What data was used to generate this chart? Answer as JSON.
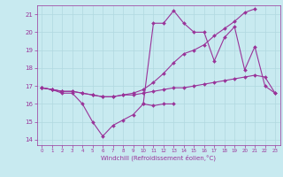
{
  "xlabel": "Windchill (Refroidissement éolien,°C)",
  "xlim": [
    -0.5,
    23.5
  ],
  "ylim": [
    13.7,
    21.5
  ],
  "xticks": [
    0,
    1,
    2,
    3,
    4,
    5,
    6,
    7,
    8,
    9,
    10,
    11,
    12,
    13,
    14,
    15,
    16,
    17,
    18,
    19,
    20,
    21,
    22,
    23
  ],
  "yticks": [
    14,
    15,
    16,
    17,
    18,
    19,
    20,
    21
  ],
  "bg_color": "#c8eaf0",
  "grid_color": "#b0d8e0",
  "line_color": "#993399",
  "line_width": 0.8,
  "marker_size": 2.0,
  "series": [
    [
      16.9,
      16.8,
      16.6,
      16.6,
      16.0,
      15.0,
      14.2,
      14.8,
      15.1,
      15.4,
      16.0,
      15.9,
      16.0,
      16.0,
      null,
      null,
      null,
      null,
      null,
      null,
      null,
      null,
      null,
      null
    ],
    [
      16.9,
      16.8,
      16.7,
      16.7,
      16.6,
      16.5,
      16.4,
      16.4,
      16.5,
      16.5,
      16.6,
      16.7,
      16.8,
      16.9,
      16.9,
      17.0,
      17.1,
      17.2,
      17.3,
      17.4,
      17.5,
      17.6,
      17.5,
      16.6
    ],
    [
      16.9,
      16.8,
      16.7,
      16.7,
      16.6,
      16.5,
      16.4,
      16.4,
      16.5,
      16.6,
      16.8,
      17.2,
      17.7,
      18.3,
      18.8,
      19.0,
      19.3,
      19.8,
      20.2,
      20.6,
      21.1,
      21.3,
      null,
      null
    ],
    [
      16.9,
      16.8,
      16.7,
      null,
      null,
      null,
      null,
      null,
      null,
      null,
      16.0,
      20.5,
      20.5,
      21.2,
      20.5,
      20.0,
      20.0,
      18.4,
      19.7,
      20.3,
      17.9,
      19.2,
      17.0,
      16.6
    ]
  ]
}
